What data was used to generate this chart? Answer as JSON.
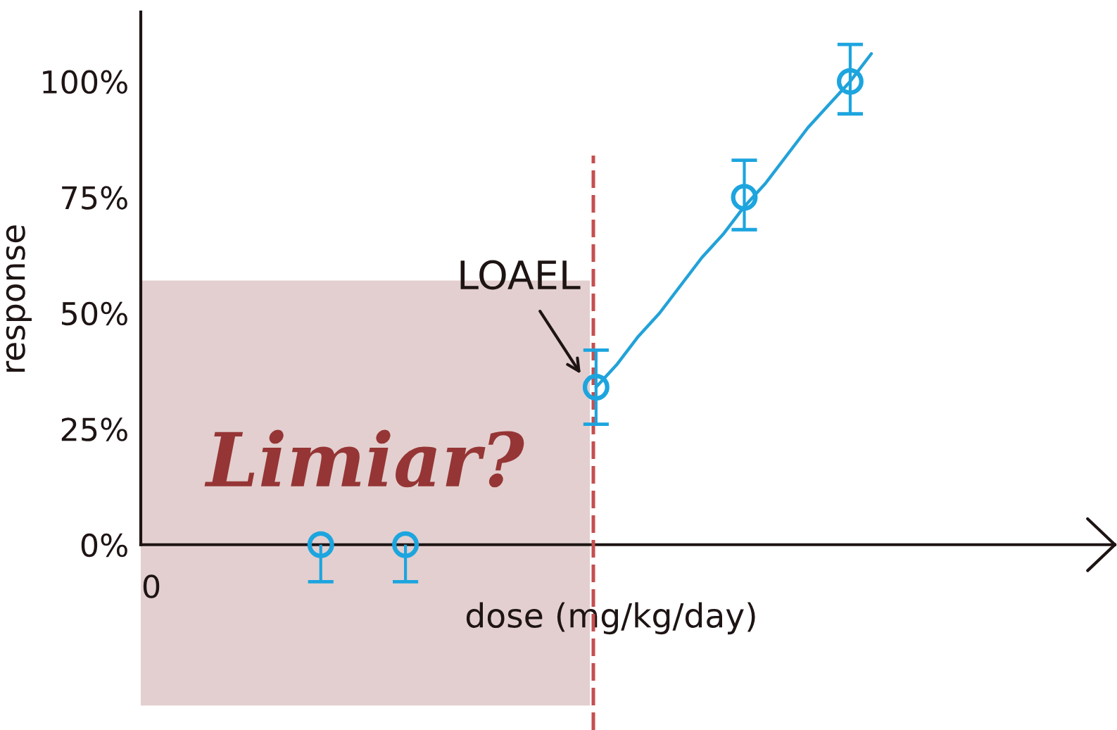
{
  "chart_data": {
    "type": "scatter",
    "xlabel": "dose (mg/kg/day)",
    "ylabel": "response",
    "categories": [
      "0",
      null,
      null,
      null,
      null,
      null,
      null,
      null,
      null,
      null,
      null,
      null,
      null,
      null,
      null,
      null,
      null,
      null,
      null,
      null,
      null,
      null,
      null,
      null,
      null,
      null,
      null,
      null,
      null,
      null,
      null,
      null,
      null,
      null,
      null,
      null,
      null,
      null,
      null,
      null,
      null,
      null,
      null,
      null,
      null,
      null
    ],
    "ylim": [
      -40,
      115
    ],
    "yticks": [
      {
        "value": 0,
        "label": "0%"
      },
      {
        "value": 25,
        "label": "25%"
      },
      {
        "value": 50,
        "label": "50%"
      },
      {
        "value": 75,
        "label": "75%"
      },
      {
        "value": 100,
        "label": "100%"
      }
    ],
    "series": [
      {
        "color": "#1ca5df",
        "marker": "circle",
        "values": [
          null,
          null,
          null,
          null,
          null,
          null,
          null,
          null,
          0,
          null,
          null,
          null,
          0,
          null,
          null,
          null,
          null,
          null,
          null,
          null,
          null,
          34,
          null,
          null,
          null,
          null,
          null,
          null,
          75,
          null,
          null,
          null,
          null,
          100,
          null,
          null,
          null,
          null,
          null,
          null,
          null,
          null,
          null,
          null,
          null,
          null
        ],
        "errors": [
          null,
          null,
          null,
          null,
          null,
          null,
          null,
          null,
          [
            -8,
            0
          ],
          null,
          null,
          null,
          [
            -8,
            0
          ],
          null,
          null,
          null,
          null,
          null,
          null,
          null,
          null,
          [
            26,
            42
          ],
          null,
          null,
          null,
          null,
          null,
          null,
          [
            68,
            83
          ],
          null,
          null,
          null,
          null,
          [
            93,
            108
          ],
          null,
          null,
          null,
          null,
          null,
          null,
          null,
          null,
          null,
          null,
          null,
          null
        ]
      },
      {
        "type": "line",
        "color": "#22a2d8",
        "line_style": "solid",
        "values": [
          null,
          null,
          null,
          null,
          null,
          null,
          null,
          null,
          null,
          null,
          null,
          null,
          null,
          null,
          null,
          null,
          null,
          null,
          null,
          null,
          null,
          34,
          39,
          45,
          50,
          56,
          62,
          67,
          73,
          78,
          84,
          90,
          95,
          100,
          106,
          null,
          null,
          null,
          null,
          null,
          null,
          null,
          null,
          null,
          null,
          null
        ]
      }
    ],
    "annotations": [
      "LOAEL",
      "Limiar?"
    ]
  }
}
